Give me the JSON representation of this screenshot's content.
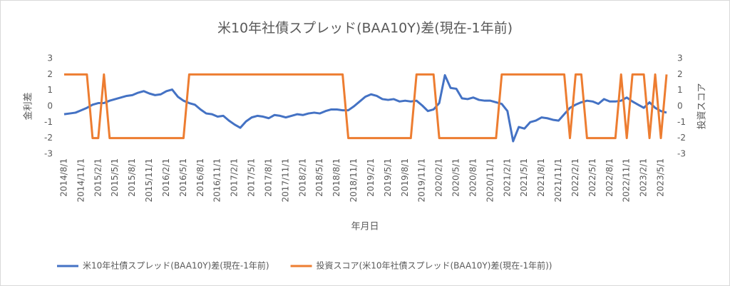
{
  "chart_data": {
    "type": "line",
    "title": "米10年社債スプレッド(BAA10Y)差(現在-1年前)",
    "x_axis_label": "年月日",
    "y_axis_label": "金利差",
    "y2_axis_label": "投資スコア",
    "categories": [
      "2014/8/1",
      null,
      null,
      "2014/11/1",
      null,
      null,
      "2015/2/1",
      null,
      null,
      "2015/5/1",
      null,
      null,
      "2015/8/1",
      null,
      null,
      "2015/11/1",
      null,
      null,
      "2016/2/1",
      null,
      null,
      "2016/5/1",
      null,
      null,
      "2016/8/1",
      null,
      null,
      "2016/11/1",
      null,
      null,
      "2017/2/1",
      null,
      null,
      "2017/5/1",
      null,
      null,
      "2017/8/1",
      null,
      null,
      "2017/11/1",
      null,
      null,
      "2018/2/1",
      null,
      null,
      "2018/5/1",
      null,
      null,
      "2018/8/1",
      null,
      null,
      "2018/11/1",
      null,
      null,
      "2019/2/1",
      null,
      null,
      "2019/5/1",
      null,
      null,
      "2019/8/1",
      null,
      null,
      "2019/11/1",
      null,
      null,
      "2020/2/1",
      null,
      null,
      "2020/5/1",
      null,
      null,
      "2020/8/1",
      null,
      null,
      "2020/11/1",
      null,
      null,
      "2021/2/1",
      null,
      null,
      "2021/5/1",
      null,
      null,
      "2021/8/1",
      null,
      null,
      "2021/11/1",
      null,
      null,
      "2022/2/1",
      null,
      null,
      "2022/5/1",
      null,
      null,
      "2022/8/1",
      null,
      null,
      "2022/11/1",
      null,
      null,
      "2023/2/1",
      null,
      null,
      "2023/5/1",
      null
    ],
    "series": [
      {
        "name": "米10年社債スプレッド(BAA10Y)差(現在-1年前)",
        "color": "#4472c4",
        "values": [
          -0.5,
          -0.45,
          -0.4,
          -0.25,
          -0.1,
          0.1,
          0.2,
          0.2,
          0.35,
          0.45,
          0.55,
          0.65,
          0.7,
          0.85,
          0.95,
          0.8,
          0.7,
          0.75,
          0.95,
          1.05,
          0.6,
          0.35,
          0.2,
          0.1,
          -0.2,
          -0.45,
          -0.5,
          -0.65,
          -0.6,
          -0.9,
          -1.15,
          -1.35,
          -0.95,
          -0.7,
          -0.6,
          -0.65,
          -0.75,
          -0.55,
          -0.6,
          -0.7,
          -0.6,
          -0.5,
          -0.55,
          -0.45,
          -0.4,
          -0.45,
          -0.3,
          -0.2,
          -0.2,
          -0.25,
          -0.25,
          0,
          0.3,
          0.6,
          0.75,
          0.65,
          0.45,
          0.4,
          0.45,
          0.3,
          0.35,
          0.3,
          0.35,
          0.05,
          -0.3,
          -0.2,
          0.2,
          1.95,
          1.15,
          1.1,
          0.5,
          0.45,
          0.55,
          0.4,
          0.35,
          0.35,
          0.25,
          0.15,
          -0.3,
          -2.2,
          -1.3,
          -1.4,
          -1.0,
          -0.9,
          -0.7,
          -0.75,
          -0.85,
          -0.9,
          -0.5,
          -0.1,
          0.1,
          0.25,
          0.35,
          0.3,
          0.15,
          0.45,
          0.3,
          0.3,
          0.35,
          0.55,
          0.3,
          0.1,
          -0.1,
          0.25,
          -0.1,
          -0.3,
          -0.4
        ]
      },
      {
        "name": "投資スコア(米10年社債スプレッド(BAA10Y)差(現在-1年前))",
        "color": "#ed7d31",
        "axis": "y2",
        "values": [
          2,
          2,
          2,
          2,
          2,
          -2,
          -2,
          2,
          -2,
          -2,
          -2,
          -2,
          -2,
          -2,
          -2,
          -2,
          -2,
          -2,
          -2,
          -2,
          -2,
          -2,
          2,
          2,
          2,
          2,
          2,
          2,
          2,
          2,
          2,
          2,
          2,
          2,
          2,
          2,
          2,
          2,
          2,
          2,
          2,
          2,
          2,
          2,
          2,
          2,
          2,
          2,
          2,
          2,
          -2,
          -2,
          -2,
          -2,
          -2,
          -2,
          -2,
          -2,
          -2,
          -2,
          -2,
          -2,
          2,
          2,
          2,
          2,
          -2,
          -2,
          -2,
          -2,
          -2,
          -2,
          -2,
          -2,
          -2,
          -2,
          -2,
          2,
          2,
          2,
          2,
          2,
          2,
          2,
          2,
          2,
          2,
          2,
          2,
          -2,
          2,
          2,
          -2,
          -2,
          -2,
          -2,
          -2,
          -2,
          2,
          -2,
          2,
          2,
          2,
          -2,
          2,
          -2,
          2
        ]
      }
    ],
    "ylim": [
      -3,
      3
    ],
    "yticks": [
      -3,
      -2,
      -1,
      0,
      1,
      2,
      3
    ],
    "y2lim": [
      -3,
      3
    ],
    "y2ticks": [
      -3,
      -2,
      -1,
      0,
      1,
      2,
      3
    ],
    "legend": "bottom"
  }
}
